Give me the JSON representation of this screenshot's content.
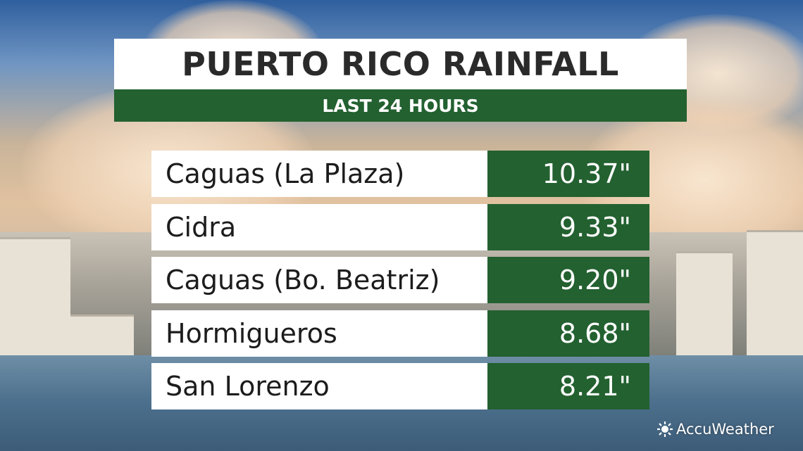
{
  "header": {
    "title": "PUERTO RICO RAINFALL",
    "subtitle": "LAST 24 HOURS"
  },
  "table": {
    "rows": [
      [
        "Caguas (La Plaza)",
        "10.37\""
      ],
      [
        "Cidra",
        "9.33\""
      ],
      [
        "Caguas (Bo. Beatriz)",
        "9.20\""
      ],
      [
        "Hormigueros",
        "8.68\""
      ],
      [
        "San Lorenzo",
        "8.21\""
      ]
    ]
  },
  "logo": "AccuWeather"
}
